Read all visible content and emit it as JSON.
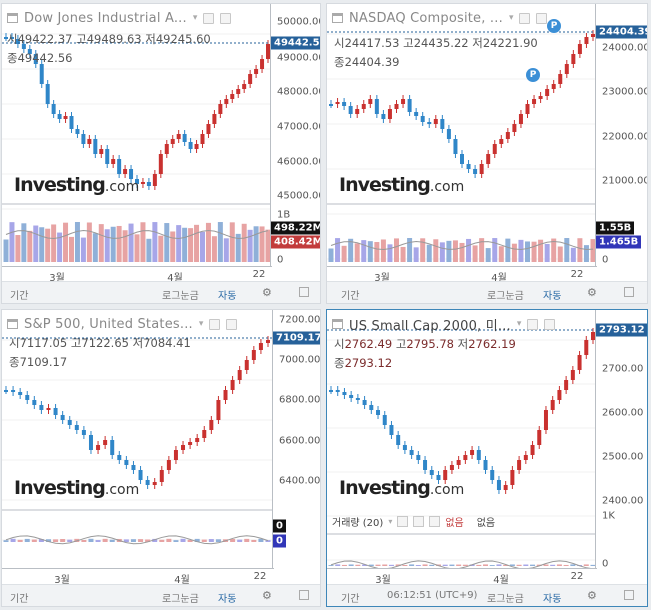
{
  "ui": {
    "period": "기간",
    "log": "로그눈금",
    "auto": "자동",
    "time": "06:12:51 (UTC+9)",
    "p_marker": "P",
    "watermark_main": "Investing",
    "watermark_com": ".com"
  },
  "panels": [
    {
      "symbol": "Dow Jones Industrial A...",
      "ohlc": {
        "open_label": "시",
        "open": "49422.37",
        "high_label": "고",
        "high": "49489.63",
        "low_label": "저",
        "low": "49245.60",
        "close_label": "종",
        "close": "49442.56"
      },
      "last_price": "49442.56",
      "y_labels": [
        "50000.00",
        "49000.00",
        "48000.00",
        "47000.00",
        "46000.00",
        "45000.00"
      ],
      "vol_labels": {
        "scale": "1B",
        "zero": "0",
        "tag1": "498.22M",
        "tag2": "408.42M"
      },
      "x_labels": [
        "3월",
        "4월",
        "22"
      ],
      "colors": {
        "up": "#c9312f",
        "down": "#2f86c8",
        "tag": "#26619a"
      }
    },
    {
      "symbol": "NASDAQ Composite, ...",
      "ohlc": {
        "open_label": "시",
        "open": "24417.53",
        "high_label": "고",
        "high": "24435.22",
        "low_label": "저",
        "low": "24221.90",
        "close_label": "종",
        "close": "24404.39"
      },
      "last_price": "24404.39",
      "y_labels": [
        "24000.00",
        "23000.00",
        "22000.00",
        "21000.00"
      ],
      "vol_labels": {
        "scale": "1.55B",
        "zero": "0",
        "tag1": "1.55B",
        "tag2": "1.465B"
      },
      "x_labels": [
        "3월",
        "4월",
        "22"
      ]
    },
    {
      "symbol": "S&P 500, United States...",
      "ohlc": {
        "open_label": "시",
        "open": "7117.05",
        "high_label": "고",
        "high": "7122.65",
        "low_label": "저",
        "low": "7084.41",
        "close_label": "종",
        "close": "7109.17"
      },
      "last_price": "7109.17",
      "y_labels": [
        "7200.00",
        "7000.00",
        "6800.00",
        "6600.00",
        "6400.00"
      ],
      "vol_labels": {
        "zero1": "0",
        "zero2": "0"
      },
      "x_labels": [
        "3월",
        "4월",
        "22"
      ]
    },
    {
      "symbol": "US Small Cap 2000, 미...",
      "ohlc": {
        "open_label": "시",
        "open": "2762.49",
        "high_label": "고",
        "high": "2795.78",
        "low_label": "저",
        "low": "2762.19",
        "close_label": "종",
        "close": "2793.12"
      },
      "last_price": "2793.12",
      "y_labels": [
        "2700.00",
        "2600.00",
        "2500.00",
        "2400.00"
      ],
      "vol_labels": {
        "scale": "1K",
        "zero": "0"
      },
      "x_labels": [
        "3월",
        "4월",
        "22"
      ],
      "volume_legend": {
        "label": "거래량 (20)",
        "val1": "없음",
        "val2": "없음"
      }
    }
  ]
}
